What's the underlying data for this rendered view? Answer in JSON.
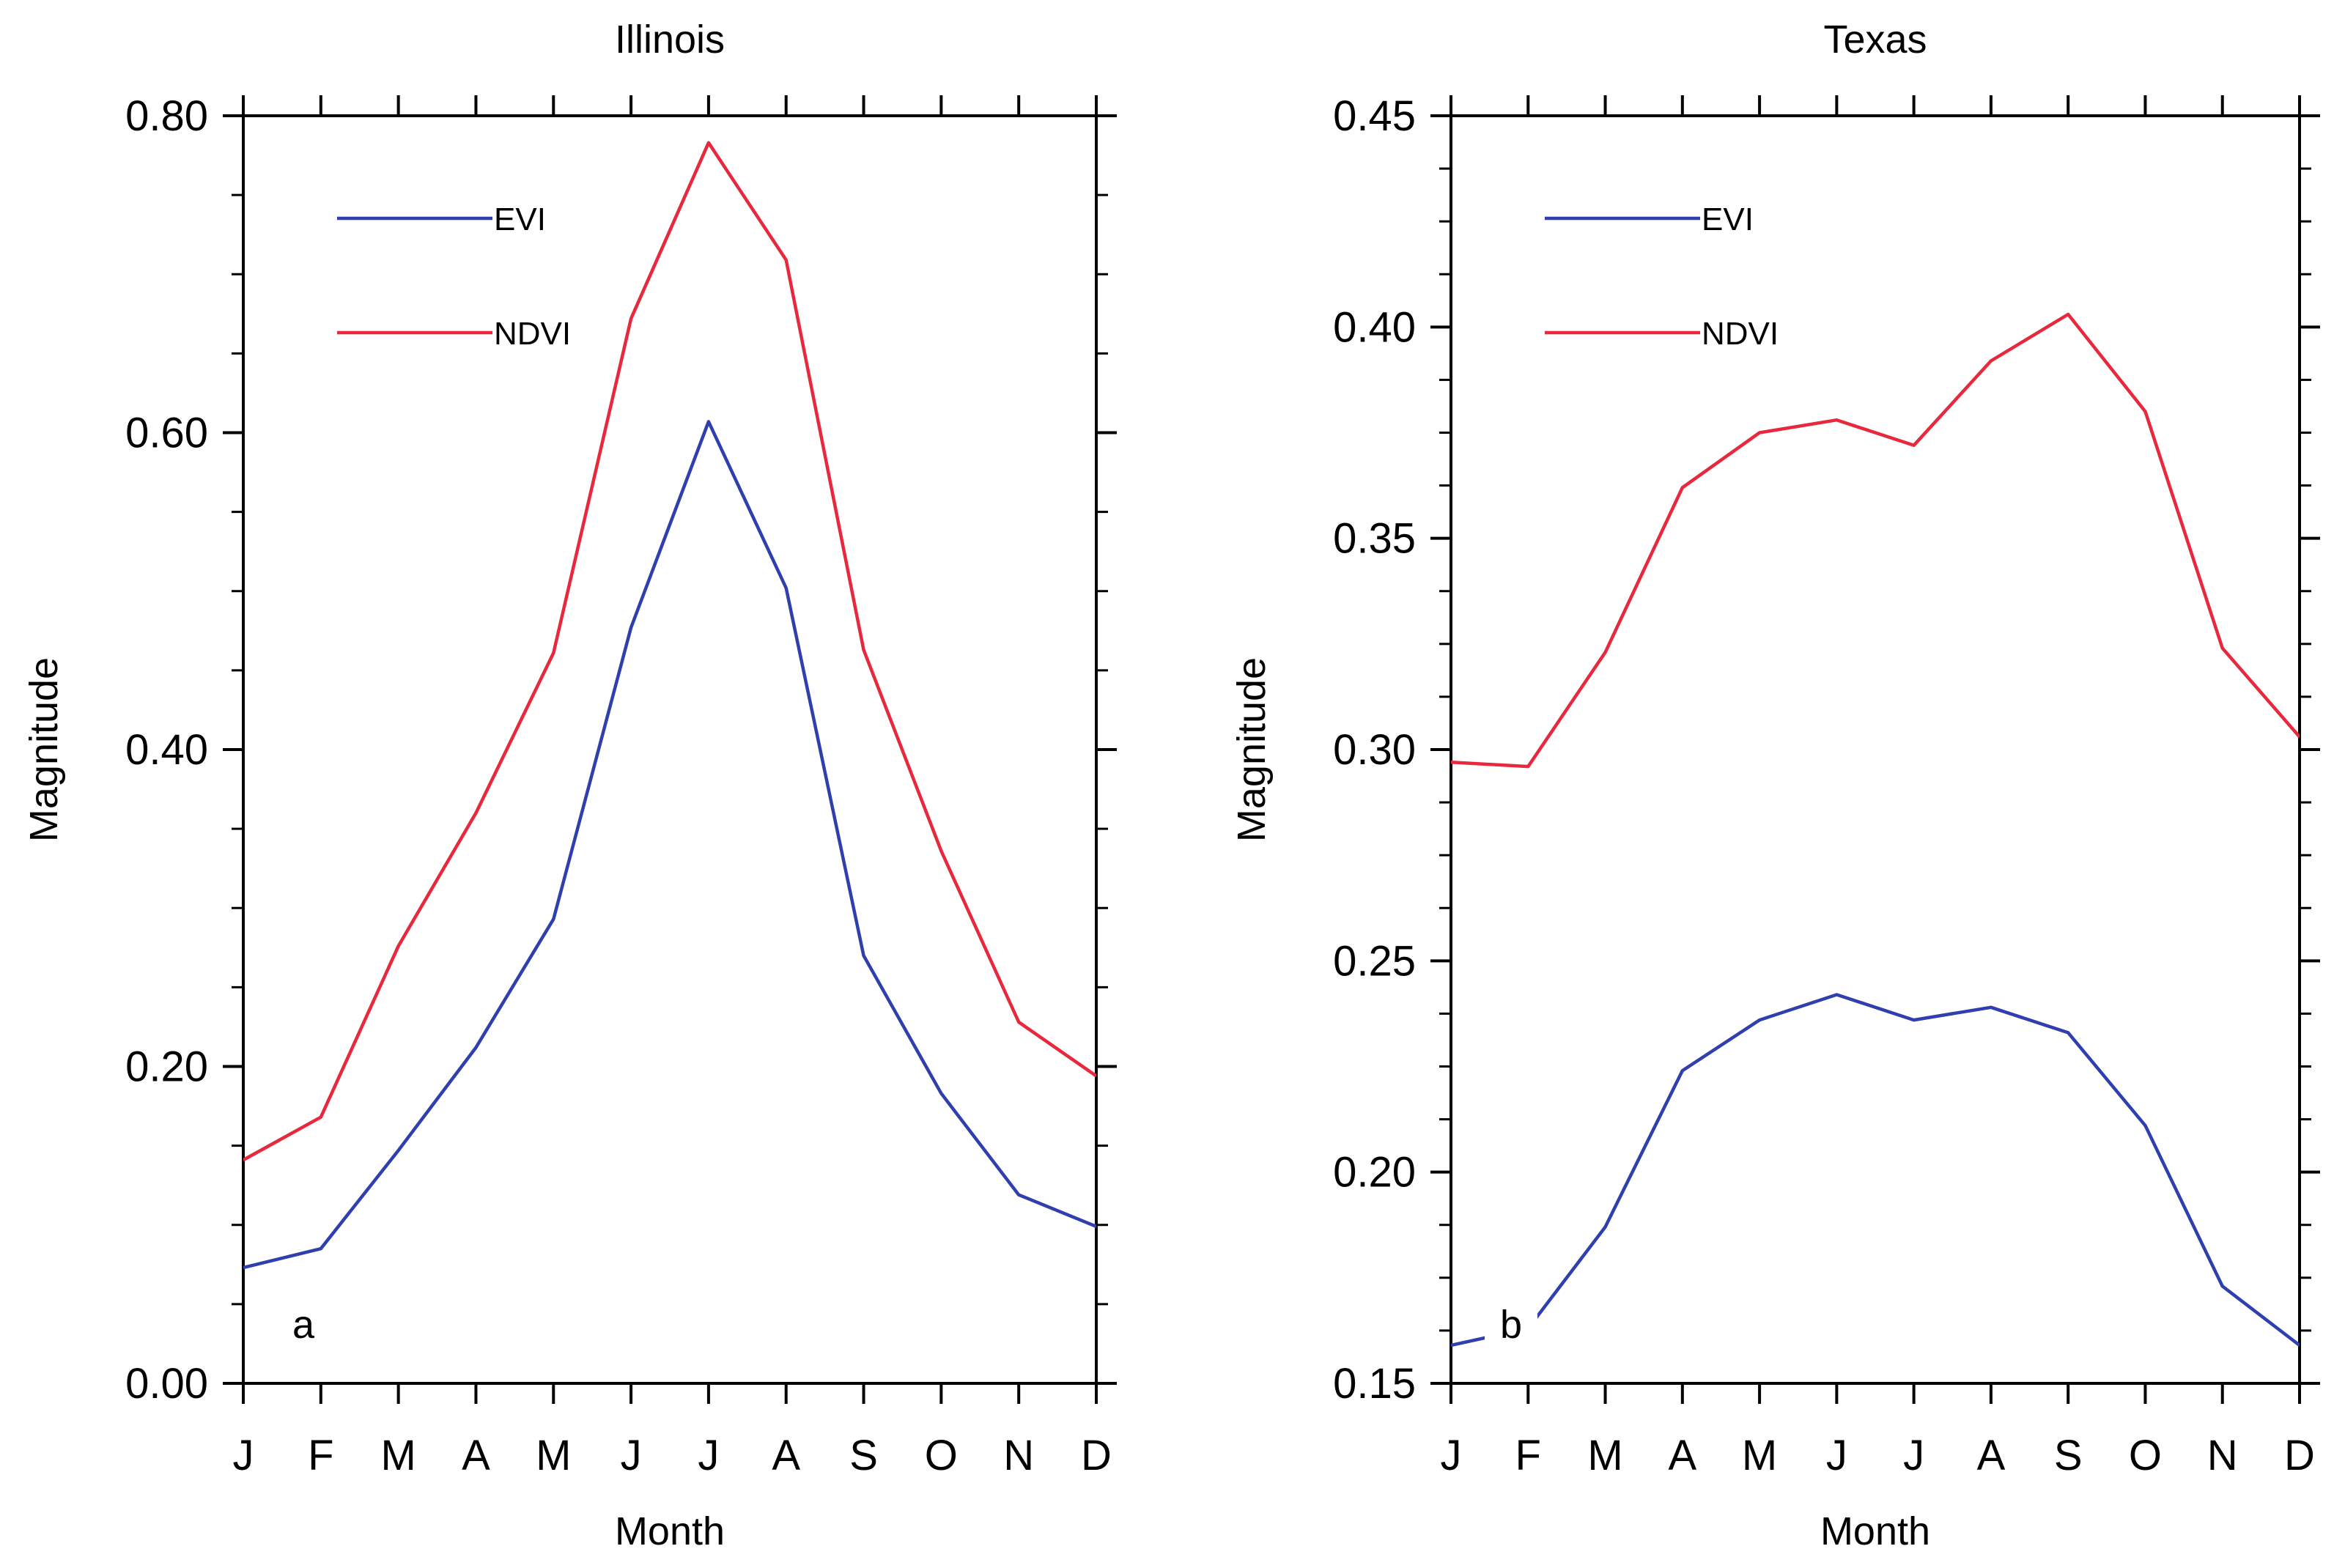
{
  "chart_data": [
    {
      "type": "line",
      "title": "Illinois",
      "xlabel": "Month",
      "ylabel": "Magnitude",
      "panel_label": "a",
      "categories": [
        "J",
        "F",
        "M",
        "A",
        "M",
        "J",
        "J",
        "A",
        "S",
        "O",
        "N",
        "D"
      ],
      "ylim": [
        0.0,
        0.8
      ],
      "yticks": [
        0.0,
        0.2,
        0.4,
        0.6,
        0.8
      ],
      "ytick_labels": [
        "0.00",
        "0.20",
        "0.40",
        "0.60",
        "0.80"
      ],
      "legend_placement": "top-left",
      "series": [
        {
          "name": "EVI",
          "color": "#2f3fae",
          "values": [
            0.073,
            0.085,
            0.147,
            0.212,
            0.293,
            0.477,
            0.607,
            0.502,
            0.27,
            0.183,
            0.119,
            0.099
          ]
        },
        {
          "name": "NDVI",
          "color": "#e8283c",
          "values": [
            0.141,
            0.168,
            0.276,
            0.36,
            0.461,
            0.672,
            0.783,
            0.709,
            0.463,
            0.336,
            0.228,
            0.194
          ]
        }
      ]
    },
    {
      "type": "line",
      "title": "Texas",
      "xlabel": "Month",
      "ylabel": "Magnitude",
      "panel_label": "b",
      "categories": [
        "J",
        "F",
        "M",
        "A",
        "M",
        "J",
        "J",
        "A",
        "S",
        "O",
        "N",
        "D"
      ],
      "ylim": [
        0.15,
        0.45
      ],
      "yticks": [
        0.15,
        0.2,
        0.25,
        0.3,
        0.35,
        0.4,
        0.45
      ],
      "ytick_labels": [
        "0.15",
        "0.20",
        "0.25",
        "0.30",
        "0.35",
        "0.40",
        "0.45"
      ],
      "legend_placement": "top-left",
      "series": [
        {
          "name": "EVI",
          "color": "#2f3fae",
          "values": [
            0.159,
            0.163,
            0.187,
            0.224,
            0.236,
            0.242,
            0.236,
            0.239,
            0.233,
            0.211,
            0.173,
            0.159
          ]
        },
        {
          "name": "NDVI",
          "color": "#e8283c",
          "values": [
            0.297,
            0.296,
            0.323,
            0.362,
            0.375,
            0.378,
            0.372,
            0.392,
            0.403,
            0.38,
            0.324,
            0.303
          ]
        }
      ]
    }
  ]
}
